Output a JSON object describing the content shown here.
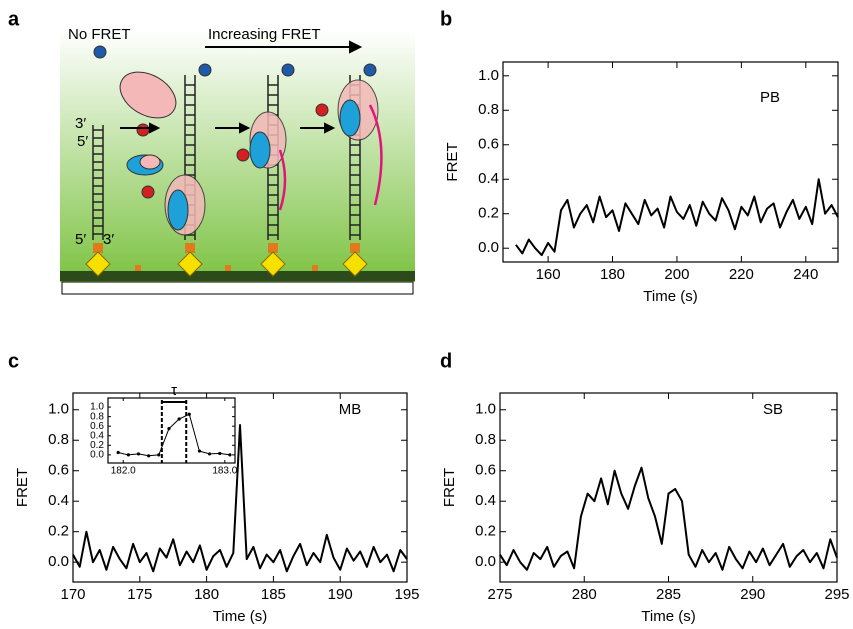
{
  "panel_labels": [
    "a",
    "b",
    "c",
    "d"
  ],
  "diagram": {
    "no_fret": "No FRET",
    "increasing_fret": "Increasing FRET",
    "end_3_top": "3′",
    "end_5_top": "5′",
    "end_5_bottom": "5′",
    "end_3_bottom": "3′"
  },
  "chart_data": [
    {
      "type": "line",
      "annotation": "PB",
      "xlabel": "Time (s)",
      "ylabel": "FRET",
      "xlim": [
        146,
        250
      ],
      "ylim": [
        -0.08,
        1.08
      ],
      "xticks": [
        160,
        180,
        200,
        220,
        240
      ],
      "yticks": [
        {
          "value": 0,
          "label": "0.0"
        },
        0.2,
        0.4,
        0.6,
        0.8,
        {
          "value": 1,
          "label": "1.0"
        }
      ],
      "color": "#000000",
      "x": [
        150,
        152,
        154,
        156,
        158,
        160,
        162,
        164,
        166,
        168,
        170,
        172,
        174,
        176,
        178,
        180,
        182,
        184,
        186,
        188,
        190,
        192,
        194,
        196,
        198,
        200,
        202,
        204,
        206,
        208,
        210,
        212,
        214,
        216,
        218,
        220,
        222,
        224,
        226,
        228,
        230,
        232,
        234,
        236,
        238,
        240,
        242,
        244,
        246,
        248,
        250
      ],
      "values": [
        0.02,
        -0.03,
        0.05,
        0.0,
        -0.04,
        0.03,
        -0.02,
        0.22,
        0.28,
        0.12,
        0.2,
        0.25,
        0.15,
        0.3,
        0.18,
        0.22,
        0.1,
        0.26,
        0.2,
        0.14,
        0.28,
        0.19,
        0.23,
        0.12,
        0.3,
        0.21,
        0.17,
        0.25,
        0.13,
        0.27,
        0.2,
        0.16,
        0.29,
        0.22,
        0.11,
        0.24,
        0.19,
        0.3,
        0.15,
        0.23,
        0.26,
        0.12,
        0.21,
        0.28,
        0.17,
        0.24,
        0.14,
        0.4,
        0.2,
        0.25,
        0.18
      ]
    },
    {
      "type": "line",
      "annotation": "MB",
      "xlabel": "Time (s)",
      "ylabel": "FRET",
      "xlim": [
        170,
        195
      ],
      "ylim": [
        -0.13,
        1.11
      ],
      "xticks": [
        170,
        175,
        180,
        185,
        190,
        195
      ],
      "yticks": [
        {
          "value": 0,
          "label": "0.0"
        },
        0.2,
        0.4,
        0.6,
        0.8,
        {
          "value": 1,
          "label": "1.0"
        }
      ],
      "color": "#000000",
      "x": [
        170,
        170.5,
        171,
        171.5,
        172,
        172.5,
        173,
        173.5,
        174,
        174.5,
        175,
        175.5,
        176,
        176.5,
        177,
        177.5,
        178,
        178.5,
        179,
        179.5,
        180,
        180.5,
        181,
        181.5,
        182,
        182.5,
        183,
        183.5,
        184,
        184.5,
        185,
        185.5,
        186,
        186.5,
        187,
        187.5,
        188,
        188.5,
        189,
        189.5,
        190,
        190.5,
        191,
        191.5,
        192,
        192.5,
        193,
        193.5,
        194,
        194.5,
        195
      ],
      "values": [
        0.05,
        -0.03,
        0.2,
        0.0,
        0.08,
        -0.05,
        0.1,
        0.02,
        -0.04,
        0.12,
        0.0,
        0.06,
        -0.06,
        0.09,
        0.03,
        0.15,
        -0.02,
        0.07,
        0.0,
        0.11,
        -0.05,
        0.04,
        0.08,
        -0.03,
        0.06,
        0.9,
        0.02,
        0.1,
        -0.04,
        0.05,
        0.0,
        0.08,
        -0.06,
        0.04,
        0.12,
        -0.02,
        0.06,
        0.0,
        0.18,
        0.03,
        -0.05,
        0.09,
        0.01,
        0.07,
        -0.03,
        0.1,
        0.0,
        0.05,
        -0.06,
        0.08,
        0.02
      ]
    },
    {
      "type": "line",
      "marker_label": "τ",
      "markers": [
        182.38,
        182.62
      ],
      "xlim": [
        181.85,
        183.1
      ],
      "ylim": [
        -0.17,
        1.19
      ],
      "xticks": [
        {
          "value": 182,
          "label": "182.0"
        },
        {
          "value": 183,
          "label": "183.0"
        }
      ],
      "yticks": [
        {
          "value": 0,
          "label": "0.0"
        },
        0.2,
        0.4,
        0.6,
        0.8,
        {
          "value": 1,
          "label": "1.0"
        }
      ],
      "color": "#000000",
      "x": [
        181.95,
        182.05,
        182.15,
        182.25,
        182.35,
        182.45,
        182.55,
        182.65,
        182.75,
        182.85,
        182.95,
        183.05
      ],
      "values": [
        0.05,
        0.0,
        0.02,
        -0.02,
        0.0,
        0.55,
        0.75,
        0.85,
        0.08,
        0.02,
        0.03,
        0.0
      ]
    },
    {
      "type": "line",
      "annotation": "SB",
      "xlabel": "Time (s)",
      "ylabel": "FRET",
      "xlim": [
        275,
        295
      ],
      "ylim": [
        -0.13,
        1.11
      ],
      "xticks": [
        275,
        280,
        285,
        290,
        295
      ],
      "yticks": [
        {
          "value": 0,
          "label": "0.0"
        },
        0.2,
        0.4,
        0.6,
        0.8,
        {
          "value": 1,
          "label": "1.0"
        }
      ],
      "color": "#000000",
      "x": [
        275,
        275.4,
        275.8,
        276.2,
        276.6,
        277,
        277.4,
        277.8,
        278.2,
        278.6,
        279,
        279.4,
        279.8,
        280.2,
        280.6,
        281,
        281.4,
        281.8,
        282.2,
        282.6,
        283,
        283.4,
        283.8,
        284.2,
        284.6,
        285,
        285.4,
        285.8,
        286.2,
        286.6,
        287,
        287.4,
        287.8,
        288.2,
        288.6,
        289,
        289.4,
        289.8,
        290.2,
        290.6,
        291,
        291.4,
        291.8,
        292.2,
        292.6,
        293,
        293.4,
        293.8,
        294.2,
        294.6,
        295
      ],
      "values": [
        0.05,
        -0.02,
        0.08,
        0.0,
        -0.05,
        0.06,
        0.02,
        0.1,
        -0.03,
        0.04,
        0.07,
        -0.04,
        0.3,
        0.45,
        0.4,
        0.55,
        0.38,
        0.6,
        0.45,
        0.35,
        0.5,
        0.62,
        0.42,
        0.3,
        0.12,
        0.45,
        0.48,
        0.4,
        0.05,
        -0.03,
        0.08,
        0.0,
        0.06,
        -0.05,
        0.1,
        0.02,
        -0.04,
        0.07,
        0.0,
        0.09,
        -0.02,
        0.05,
        0.12,
        -0.03,
        0.04,
        0.08,
        0.0,
        0.06,
        -0.04,
        0.15,
        0.03
      ]
    }
  ]
}
